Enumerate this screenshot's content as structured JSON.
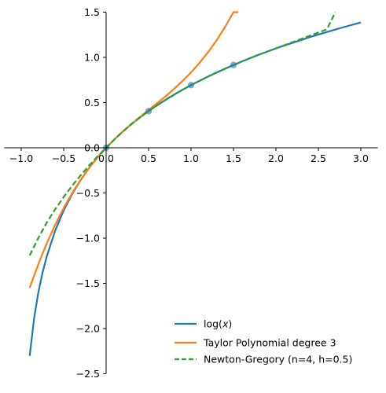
{
  "chart_data": {
    "type": "line",
    "xlim": [
      -1.2,
      3.2
    ],
    "ylim": [
      -2.5,
      1.5
    ],
    "xticks": [
      -1.0,
      -0.5,
      0.0,
      0.5,
      1.0,
      1.5,
      2.0,
      2.5,
      3.0
    ],
    "xtick_labels": [
      "−1.0",
      "−0.5",
      "0.0",
      "0.5",
      "1.0",
      "1.5",
      "2.0",
      "2.5",
      "3.0"
    ],
    "yticks": [
      -2.5,
      -2.0,
      -1.5,
      -1.0,
      -0.5,
      0.0,
      0.5,
      1.0,
      1.5
    ],
    "ytick_labels": [
      "−2.5",
      "−2.0",
      "−1.5",
      "−1.0",
      "−0.5",
      "0.0",
      "0.5",
      "1.0",
      "1.5"
    ],
    "spines": "centered at origin",
    "legend_position": "lower-right",
    "grid": false,
    "series": [
      {
        "name": "log(x)",
        "label_main": "log(",
        "label_var": "x",
        "label_end": ")",
        "style": "solid",
        "color": "#1f77b4",
        "x": [
          -0.9,
          -0.85,
          -0.8,
          -0.75,
          -0.7,
          -0.6,
          -0.5,
          -0.4,
          -0.3,
          -0.2,
          -0.1,
          0.0,
          0.1,
          0.2,
          0.3,
          0.4,
          0.5,
          0.6,
          0.7,
          0.8,
          0.9,
          1.0,
          1.2,
          1.4,
          1.6,
          1.8,
          2.0,
          2.2,
          2.4,
          2.6,
          2.8,
          3.0
        ],
        "y": [
          -2.303,
          -1.897,
          -1.609,
          -1.386,
          -1.204,
          -0.916,
          -0.693,
          -0.511,
          -0.357,
          -0.223,
          -0.105,
          0.0,
          0.095,
          0.182,
          0.262,
          0.336,
          0.405,
          0.47,
          0.531,
          0.588,
          0.642,
          0.693,
          0.788,
          0.875,
          0.956,
          1.03,
          1.099,
          1.163,
          1.224,
          1.281,
          1.335,
          1.386
        ]
      },
      {
        "name": "Taylor Polynomial degree 3",
        "style": "solid",
        "color": "#ff7f0e",
        "x": [
          -0.9,
          -0.8,
          -0.7,
          -0.6,
          -0.5,
          -0.4,
          -0.3,
          -0.2,
          -0.1,
          0.0,
          0.1,
          0.2,
          0.3,
          0.4,
          0.5,
          0.6,
          0.7,
          0.8,
          0.9,
          1.0,
          1.1,
          1.2,
          1.3,
          1.4,
          1.5,
          1.557
        ],
        "y": [
          -1.548,
          -1.291,
          -1.059,
          -0.852,
          -0.667,
          -0.501,
          -0.354,
          -0.223,
          -0.105,
          0.0,
          0.095,
          0.183,
          0.264,
          0.341,
          0.417,
          0.492,
          0.569,
          0.651,
          0.738,
          0.833,
          0.939,
          1.056,
          1.187,
          1.335,
          1.5,
          1.5
        ]
      },
      {
        "name": "Newton-Gregory (n=4, h=0.5)",
        "style": "dashed",
        "color": "#2ca02c",
        "x": [
          -0.9,
          -0.8,
          -0.7,
          -0.6,
          -0.5,
          -0.4,
          -0.3,
          -0.2,
          -0.1,
          0.0,
          0.1,
          0.2,
          0.3,
          0.4,
          0.5,
          0.6,
          0.7,
          0.8,
          0.9,
          1.0,
          1.2,
          1.4,
          1.6,
          1.8,
          2.0,
          2.2,
          2.4,
          2.6,
          2.7
        ],
        "y": [
          -1.19,
          -1.0,
          -0.83,
          -0.68,
          -0.545,
          -0.42,
          -0.305,
          -0.197,
          -0.095,
          0.0,
          0.095,
          0.183,
          0.264,
          0.338,
          0.405,
          0.469,
          0.529,
          0.586,
          0.641,
          0.693,
          0.787,
          0.874,
          0.955,
          1.03,
          1.1,
          1.17,
          1.24,
          1.31,
          1.5
        ]
      }
    ],
    "points": {
      "color": "#1f77b4",
      "x": [
        0.0,
        0.5,
        1.0,
        1.5
      ],
      "y": [
        0.0,
        0.405,
        0.693,
        0.916
      ]
    }
  }
}
